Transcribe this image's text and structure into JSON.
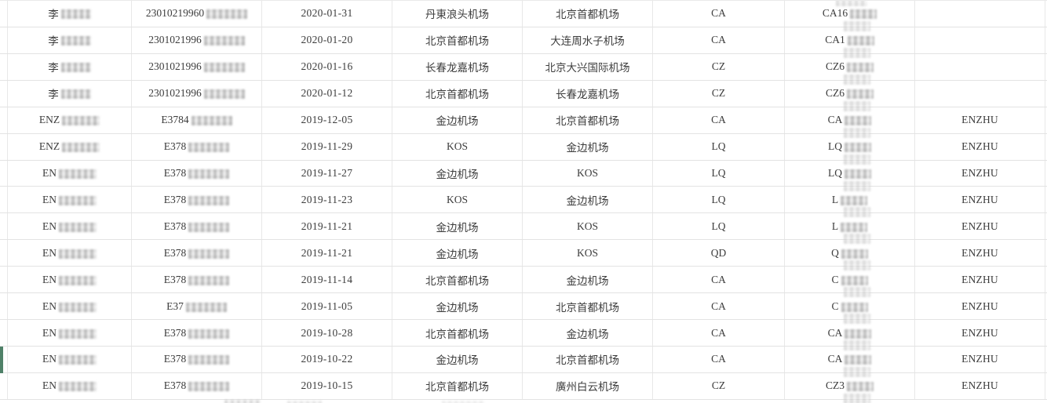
{
  "table": {
    "columns": [
      "name",
      "id_number",
      "date",
      "departure",
      "arrival",
      "airline",
      "flight",
      "remark"
    ],
    "redacted_columns": [
      "name",
      "id_number",
      "flight"
    ],
    "rows": [
      {
        "name": "李",
        "id_number": "23010219960",
        "date": "2020-01-31",
        "departure": "丹東浪头机场",
        "arrival": "北京首都机场",
        "airline": "CA",
        "flight": "CA16",
        "remark": ""
      },
      {
        "name": "李",
        "id_number": "2301021996",
        "date": "2020-01-20",
        "departure": "北京首都机场",
        "arrival": "大连周水子机场",
        "airline": "CA",
        "flight": "CA1",
        "remark": ""
      },
      {
        "name": "李",
        "id_number": "2301021996",
        "date": "2020-01-16",
        "departure": "长春龙嘉机场",
        "arrival": "北京大兴国际机场",
        "airline": "CZ",
        "flight": "CZ6",
        "remark": ""
      },
      {
        "name": "李",
        "id_number": "2301021996",
        "date": "2020-01-12",
        "departure": "北京首都机场",
        "arrival": "长春龙嘉机场",
        "airline": "CZ",
        "flight": "CZ6",
        "remark": ""
      },
      {
        "name": "ENZ",
        "id_number": "E3784",
        "date": "2019-12-05",
        "departure": "金边机场",
        "arrival": "北京首都机场",
        "airline": "CA",
        "flight": "CA",
        "remark": "ENZHU"
      },
      {
        "name": "ENZ",
        "id_number": "E378",
        "date": "2019-11-29",
        "departure": "KOS",
        "arrival": "金边机场",
        "airline": "LQ",
        "flight": "LQ",
        "remark": "ENZHU"
      },
      {
        "name": "EN",
        "id_number": "E378",
        "date": "2019-11-27",
        "departure": "金边机场",
        "arrival": "KOS",
        "airline": "LQ",
        "flight": "LQ",
        "remark": "ENZHU"
      },
      {
        "name": "EN",
        "id_number": "E378",
        "date": "2019-11-23",
        "departure": "KOS",
        "arrival": "金边机场",
        "airline": "LQ",
        "flight": "L",
        "remark": "ENZHU"
      },
      {
        "name": "EN",
        "id_number": "E378",
        "date": "2019-11-21",
        "departure": "金边机场",
        "arrival": "KOS",
        "airline": "LQ",
        "flight": "L",
        "remark": "ENZHU"
      },
      {
        "name": "EN",
        "id_number": "E378",
        "date": "2019-11-21",
        "departure": "金边机场",
        "arrival": "KOS",
        "airline": "QD",
        "flight": "Q",
        "remark": "ENZHU"
      },
      {
        "name": "EN",
        "id_number": "E378",
        "date": "2019-11-14",
        "departure": "北京首都机场",
        "arrival": "金边机场",
        "airline": "CA",
        "flight": "C",
        "remark": "ENZHU"
      },
      {
        "name": "EN",
        "id_number": "E37",
        "date": "2019-11-05",
        "departure": "金边机场",
        "arrival": "北京首都机场",
        "airline": "CA",
        "flight": "C",
        "remark": "ENZHU"
      },
      {
        "name": "EN",
        "id_number": "E378",
        "date": "2019-10-28",
        "departure": "北京首都机场",
        "arrival": "金边机场",
        "airline": "CA",
        "flight": "CA",
        "remark": "ENZHU"
      },
      {
        "name": "EN",
        "id_number": "E378",
        "date": "2019-10-22",
        "departure": "金边机场",
        "arrival": "北京首都机场",
        "airline": "CA",
        "flight": "CA",
        "remark": "ENZHU"
      },
      {
        "name": "EN",
        "id_number": "E378",
        "date": "2019-10-15",
        "departure": "北京首都机场",
        "arrival": "廣州白云机场",
        "airline": "CZ",
        "flight": "CZ3",
        "remark": "ENZHU"
      }
    ]
  },
  "highlight": {
    "row_index": 14
  },
  "colors": {
    "highlight_green": "#4f8168",
    "grid_line": "#e3e3e3",
    "text": "#3c3c3c",
    "background": "#ffffff"
  }
}
